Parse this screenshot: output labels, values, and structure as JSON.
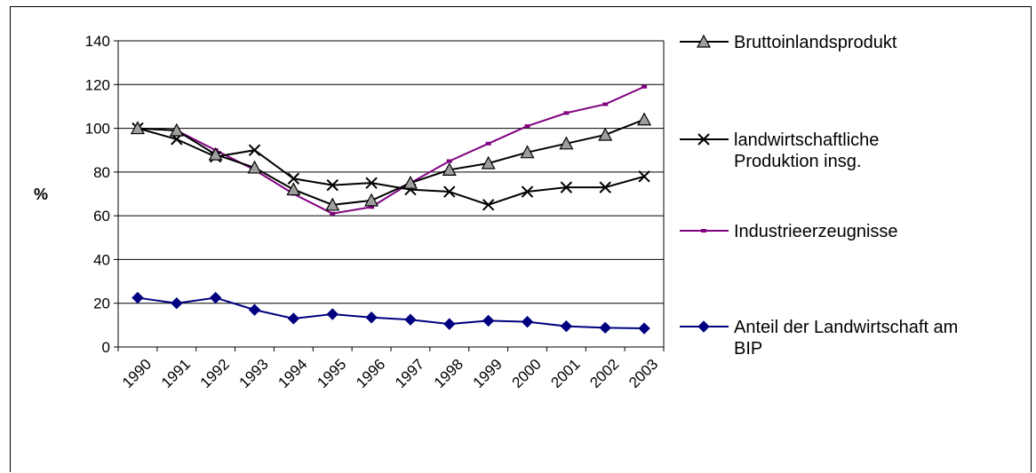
{
  "chart_data": {
    "type": "line",
    "ylabel": "%",
    "ylim": [
      0,
      140
    ],
    "yticks": [
      0,
      20,
      40,
      60,
      80,
      100,
      120,
      140
    ],
    "grid": "horizontal",
    "legend_position": "right",
    "categories": [
      "1990",
      "1991",
      "1992",
      "1993",
      "1994",
      "1995",
      "1996",
      "1997",
      "1998",
      "1999",
      "2000",
      "2001",
      "2002",
      "2003"
    ],
    "series": [
      {
        "name": "Bruttoinlandsprodukt",
        "marker": "triangle",
        "color": "#000000",
        "values": [
          100,
          99,
          88,
          82,
          72,
          65,
          67,
          75,
          81,
          84,
          89,
          93,
          97,
          104
        ]
      },
      {
        "name": "landwirtschaftliche Produktion insg.",
        "marker": "x",
        "color": "#000000",
        "values": [
          100,
          95,
          87,
          90,
          77,
          74,
          75,
          72,
          71,
          65,
          71,
          73,
          73,
          78
        ]
      },
      {
        "name": "Industrieerzeugnisse",
        "marker": "square",
        "color": "#800080",
        "values": [
          100,
          99,
          90,
          81,
          70,
          61,
          64,
          75,
          85,
          93,
          101,
          107,
          111,
          119
        ]
      },
      {
        "name": "Anteil der Landwirtschaft am BIP",
        "marker": "diamond",
        "color": "#000080",
        "values": [
          22.5,
          20,
          22.5,
          17,
          13,
          15,
          13.5,
          12.5,
          10.5,
          12,
          11.5,
          9.5,
          8.8,
          8.5
        ]
      }
    ]
  }
}
